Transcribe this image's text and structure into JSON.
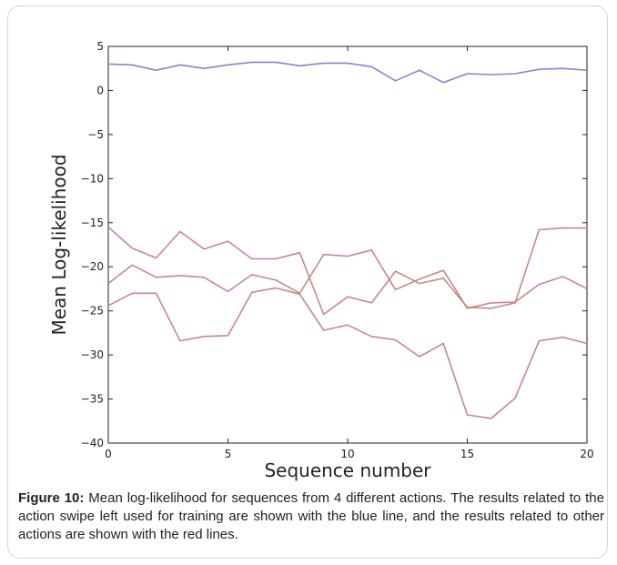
{
  "chart_data": {
    "type": "line",
    "xlabel": "Sequence number",
    "ylabel": "Mean Log-likelihood",
    "xlim": [
      0,
      20
    ],
    "ylim": [
      -40,
      5
    ],
    "xticks": [
      "0",
      "5",
      "10",
      "15",
      "20"
    ],
    "yticks": [
      "5",
      "0",
      "−5",
      "−10",
      "−15",
      "−20",
      "−25",
      "−30",
      "−35",
      "−40"
    ],
    "x": [
      0,
      1,
      2,
      3,
      4,
      5,
      6,
      7,
      8,
      9,
      10,
      11,
      12,
      13,
      14,
      15,
      16,
      17,
      18,
      19,
      20
    ],
    "grid": false,
    "series": [
      {
        "color": "#7b7fd0",
        "values": [
          3.0,
          2.9,
          2.3,
          2.9,
          2.5,
          2.9,
          3.2,
          3.2,
          2.8,
          3.1,
          3.1,
          2.7,
          1.1,
          2.3,
          0.9,
          1.9,
          1.8,
          1.9,
          2.4,
          2.5,
          2.3
        ]
      },
      {
        "color": "#c98080",
        "values": [
          -15.5,
          -17.9,
          -19.0,
          -16.0,
          -18.0,
          -17.1,
          -19.1,
          -19.1,
          -18.4,
          -25.4,
          -23.4,
          -24.1,
          -20.5,
          -21.9,
          -21.3,
          -24.6,
          -24.7,
          -24.1,
          -15.8,
          -15.6,
          -15.6
        ]
      },
      {
        "color": "#c98080",
        "values": [
          -21.9,
          -19.8,
          -21.2,
          -21.0,
          -21.2,
          -22.8,
          -20.9,
          -21.5,
          -23.0,
          -18.6,
          -18.8,
          -18.1,
          -22.6,
          -21.4,
          -20.4,
          -24.7,
          -24.1,
          -24.0,
          -22.0,
          -21.1,
          -22.5
        ]
      },
      {
        "color": "#c98080",
        "values": [
          -24.4,
          -23.0,
          -23.0,
          -28.4,
          -27.9,
          -27.8,
          -22.9,
          -22.4,
          -23.1,
          -27.2,
          -26.6,
          -27.9,
          -28.3,
          -30.2,
          -28.7,
          -36.8,
          -37.2,
          -34.9,
          -28.4,
          -28.0,
          -28.7
        ]
      }
    ]
  },
  "caption": {
    "label": "Figure 10:",
    "text": " Mean log-likelihood for sequences from 4 different actions. The results related to the action swipe left used for training are shown with the blue line, and the results related to other actions are shown with the red lines."
  }
}
